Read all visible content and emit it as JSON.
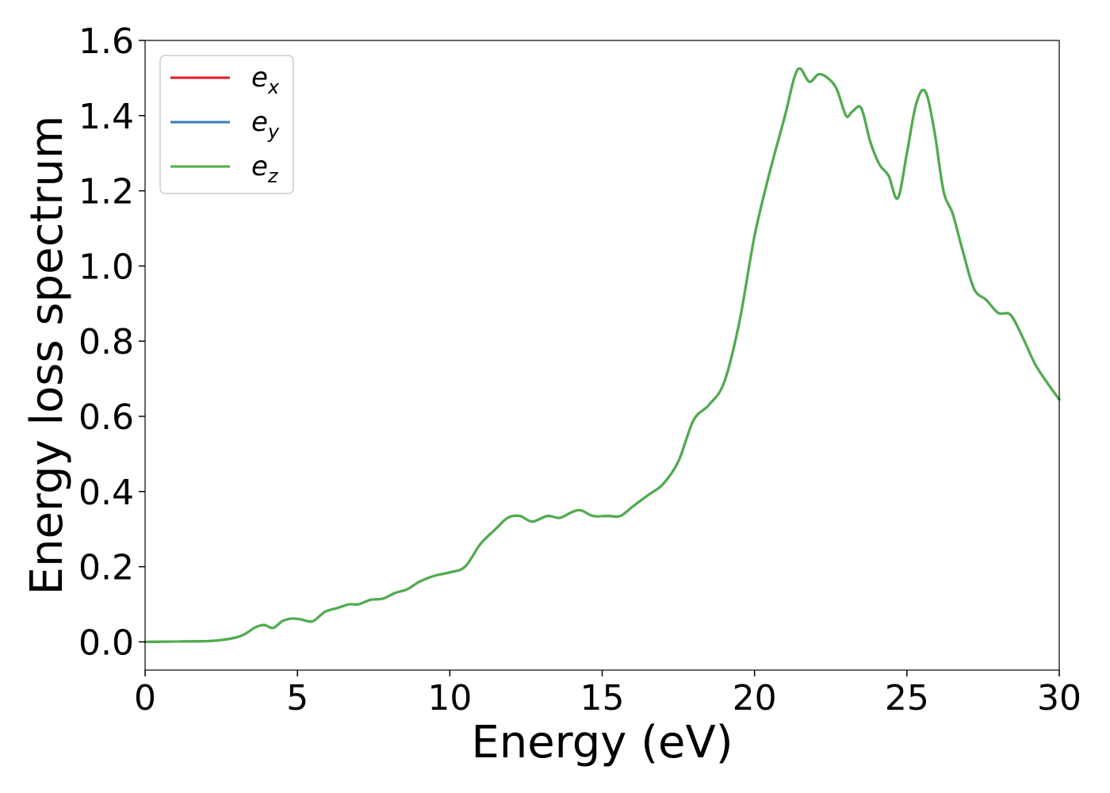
{
  "chart_data": {
    "type": "line",
    "title": "",
    "xlabel": "Energy (eV)",
    "ylabel": "Energy loss spectrum",
    "xlim": [
      0,
      30
    ],
    "ylim": [
      -0.075,
      1.6
    ],
    "xticks": [
      "0",
      "5",
      "10",
      "15",
      "20",
      "25",
      "30"
    ],
    "yticks": [
      "0.0",
      "0.2",
      "0.4",
      "0.6",
      "0.8",
      "1.0",
      "1.2",
      "1.4",
      "1.6"
    ],
    "grid": false,
    "legend": {
      "placement": "top-left",
      "entries": [
        {
          "base": "e",
          "sub": "x",
          "color": "#e41a1c"
        },
        {
          "base": "e",
          "sub": "y",
          "color": "#377eb8"
        },
        {
          "base": "e",
          "sub": "z",
          "color": "#4daf4a"
        }
      ]
    },
    "x": [
      0,
      1,
      2,
      2.5,
      3,
      3.3,
      3.6,
      3.9,
      4.2,
      4.5,
      4.8,
      5.1,
      5.5,
      5.9,
      6.3,
      6.7,
      7.0,
      7.4,
      7.8,
      8.2,
      8.6,
      9.0,
      9.5,
      10.0,
      10.5,
      11.0,
      11.5,
      11.9,
      12.3,
      12.7,
      13.2,
      13.6,
      14.0,
      14.3,
      14.7,
      15.2,
      15.6,
      16.0,
      16.5,
      17.0,
      17.5,
      18.0,
      18.5,
      19.0,
      19.5,
      20.0,
      20.5,
      21.0,
      21.3,
      21.5,
      21.8,
      22.1,
      22.4,
      22.7,
      23.0,
      23.2,
      23.5,
      23.8,
      24.1,
      24.4,
      24.7,
      25.0,
      25.3,
      25.6,
      25.9,
      26.2,
      26.5,
      26.8,
      27.2,
      27.6,
      28.0,
      28.4,
      28.8,
      29.2,
      29.6,
      30.0
    ],
    "series": [
      {
        "color": "#e41a1c",
        "values": [
          0.0,
          0.001,
          0.002,
          0.005,
          0.012,
          0.022,
          0.038,
          0.045,
          0.037,
          0.055,
          0.062,
          0.06,
          0.055,
          0.08,
          0.09,
          0.1,
          0.1,
          0.112,
          0.115,
          0.13,
          0.14,
          0.16,
          0.176,
          0.185,
          0.2,
          0.26,
          0.3,
          0.33,
          0.335,
          0.32,
          0.335,
          0.33,
          0.345,
          0.35,
          0.335,
          0.335,
          0.335,
          0.36,
          0.39,
          0.42,
          0.48,
          0.59,
          0.63,
          0.69,
          0.85,
          1.08,
          1.25,
          1.4,
          1.5,
          1.525,
          1.49,
          1.51,
          1.5,
          1.47,
          1.4,
          1.41,
          1.42,
          1.33,
          1.27,
          1.24,
          1.18,
          1.3,
          1.43,
          1.465,
          1.36,
          1.2,
          1.14,
          1.05,
          0.94,
          0.91,
          0.875,
          0.87,
          0.81,
          0.74,
          0.69,
          0.645
        ]
      },
      {
        "color": "#377eb8",
        "values": [
          0.0,
          0.001,
          0.002,
          0.005,
          0.012,
          0.022,
          0.038,
          0.045,
          0.037,
          0.055,
          0.062,
          0.06,
          0.055,
          0.08,
          0.09,
          0.1,
          0.1,
          0.112,
          0.115,
          0.13,
          0.14,
          0.16,
          0.176,
          0.185,
          0.2,
          0.26,
          0.3,
          0.33,
          0.335,
          0.32,
          0.335,
          0.33,
          0.345,
          0.35,
          0.335,
          0.335,
          0.335,
          0.36,
          0.39,
          0.42,
          0.48,
          0.59,
          0.63,
          0.69,
          0.85,
          1.08,
          1.25,
          1.4,
          1.5,
          1.525,
          1.49,
          1.51,
          1.5,
          1.47,
          1.4,
          1.41,
          1.42,
          1.33,
          1.27,
          1.24,
          1.18,
          1.3,
          1.43,
          1.465,
          1.36,
          1.2,
          1.14,
          1.05,
          0.94,
          0.91,
          0.875,
          0.87,
          0.81,
          0.74,
          0.69,
          0.645
        ]
      },
      {
        "color": "#4daf4a",
        "values": [
          0.0,
          0.001,
          0.002,
          0.005,
          0.012,
          0.022,
          0.038,
          0.045,
          0.037,
          0.055,
          0.062,
          0.06,
          0.055,
          0.08,
          0.09,
          0.1,
          0.1,
          0.112,
          0.115,
          0.13,
          0.14,
          0.16,
          0.176,
          0.185,
          0.2,
          0.26,
          0.3,
          0.33,
          0.335,
          0.32,
          0.335,
          0.33,
          0.345,
          0.35,
          0.335,
          0.335,
          0.335,
          0.36,
          0.39,
          0.42,
          0.48,
          0.59,
          0.63,
          0.69,
          0.85,
          1.08,
          1.25,
          1.4,
          1.5,
          1.525,
          1.49,
          1.51,
          1.5,
          1.47,
          1.4,
          1.41,
          1.42,
          1.33,
          1.27,
          1.24,
          1.18,
          1.3,
          1.43,
          1.465,
          1.36,
          1.2,
          1.14,
          1.05,
          0.94,
          0.91,
          0.875,
          0.87,
          0.81,
          0.74,
          0.69,
          0.645
        ]
      }
    ]
  }
}
